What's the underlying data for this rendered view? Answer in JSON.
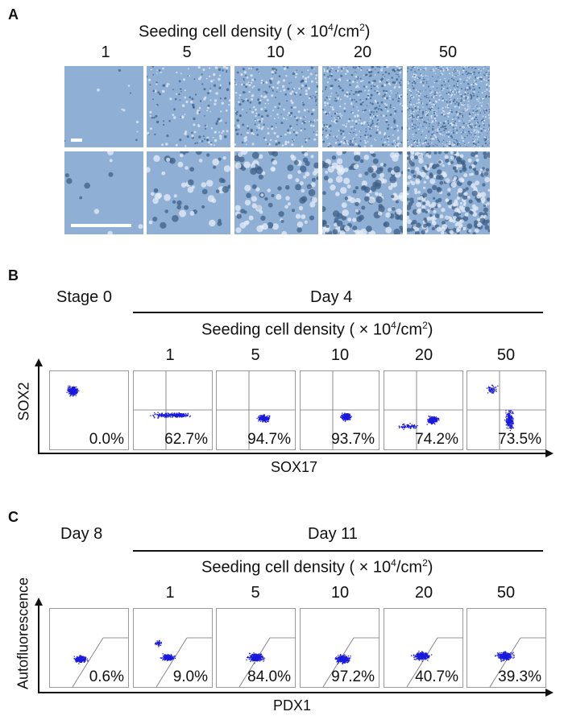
{
  "panel_a": {
    "letter": "A",
    "header_prefix": "Seeding cell density ( × 10",
    "header_sup1": "4",
    "header_mid": "/cm",
    "header_sup2": "2",
    "header_suffix": ")",
    "columns": [
      "1",
      "5",
      "10",
      "20",
      "50"
    ]
  },
  "panel_b": {
    "letter": "B",
    "stage_label": "Stage 0",
    "day_label": "Day 4",
    "header_prefix": "Seeding cell density ( × 10",
    "header_sup1": "4",
    "header_mid": "/cm",
    "header_sup2": "2",
    "header_suffix": ")",
    "columns": [
      "1",
      "5",
      "10",
      "20",
      "50"
    ],
    "y_axis": "SOX2",
    "x_axis": "SOX17",
    "percentages": [
      "0.0%",
      "62.7%",
      "94.7%",
      "93.7%",
      "74.2%",
      "73.5%"
    ]
  },
  "panel_c": {
    "letter": "C",
    "stage_label": "Day 8",
    "day_label": "Day 11",
    "header_prefix": "Seeding cell density ( × 10",
    "header_sup1": "4",
    "header_mid": "/cm",
    "header_sup2": "2",
    "header_suffix": ")",
    "columns": [
      "1",
      "5",
      "10",
      "20",
      "50"
    ],
    "y_axis": "Autofluorescence",
    "x_axis": "PDX1",
    "percentages": [
      "0.6%",
      "9.0%",
      "84.0%",
      "97.2%",
      "40.7%",
      "39.3%"
    ]
  },
  "colors": {
    "dots": "#1a1adc",
    "micro_bg": "#8fb0d4",
    "gate": "#707070"
  }
}
